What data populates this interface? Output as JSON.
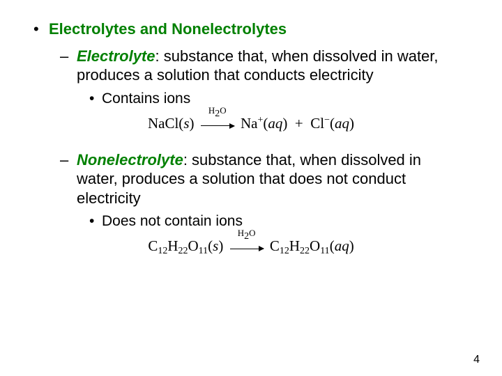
{
  "colors": {
    "heading_green": "#008000",
    "text": "#000000",
    "background": "#ffffff"
  },
  "fonts": {
    "body_family": "Arial",
    "equation_family": "Times New Roman",
    "body_size_pt": 22,
    "eqn_size_pt": 21
  },
  "heading": "Electrolytes and Nonelectrolytes",
  "electrolyte": {
    "term": "Electrolyte",
    "definition": ":  substance that, when dissolved in water, produces a solution that  conducts electricity",
    "sub_point": "Contains ions",
    "equation": {
      "lhs_formula": "NaCl",
      "lhs_state": "(s)",
      "arrow_label": "H₂O",
      "rhs_parts": [
        {
          "formula": "Na",
          "sup": "+",
          "state": "(aq)"
        },
        {
          "plus": " + "
        },
        {
          "formula": "Cl",
          "sup": "−",
          "state": "(aq)"
        }
      ]
    }
  },
  "nonelectrolyte": {
    "term": "Nonelectrolyte",
    "definition": ": substance that, when dissolved in water, produces a solution that does not conduct electricity",
    "sub_point": "Does not contain ions",
    "equation": {
      "lhs": "C₁₂H₂₂O₁₁(s)",
      "arrow_label": "H₂O",
      "rhs": "C₁₂H₂₂O₁₁(aq)"
    }
  },
  "page_number": "4"
}
